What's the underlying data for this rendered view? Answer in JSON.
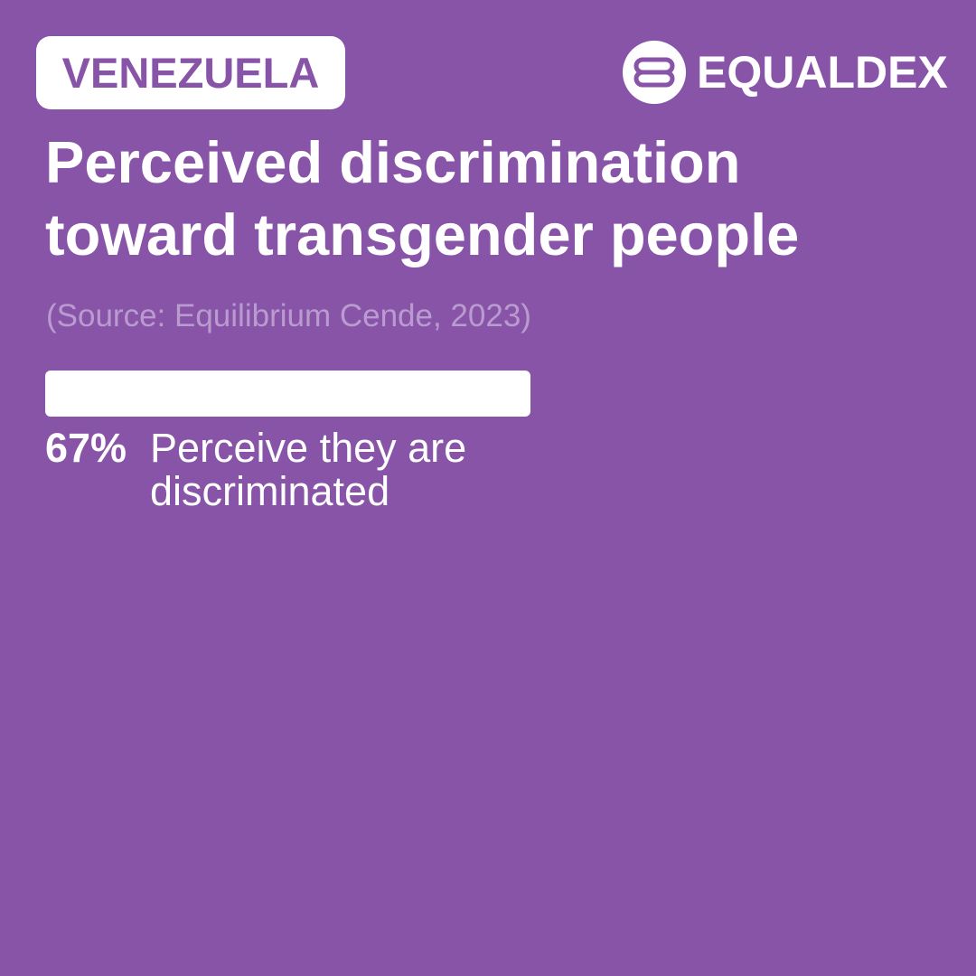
{
  "country": "VENEZUELA",
  "brand": {
    "name": "EQUALDEX",
    "logo_icon": "equaldex-logo-icon"
  },
  "title": "Perceived discrimination toward transgender people",
  "source": "(Source: Equilibrium Cende, 2023)",
  "colors": {
    "background": "#8854A8",
    "foreground": "#FFFFFF",
    "muted_text": "#BA9BD0"
  },
  "chart_data": {
    "type": "bar",
    "categories": [
      "Perceive they are discriminated"
    ],
    "values": [
      67
    ],
    "value_labels": [
      "67%"
    ],
    "ylim": [
      0,
      100
    ]
  }
}
